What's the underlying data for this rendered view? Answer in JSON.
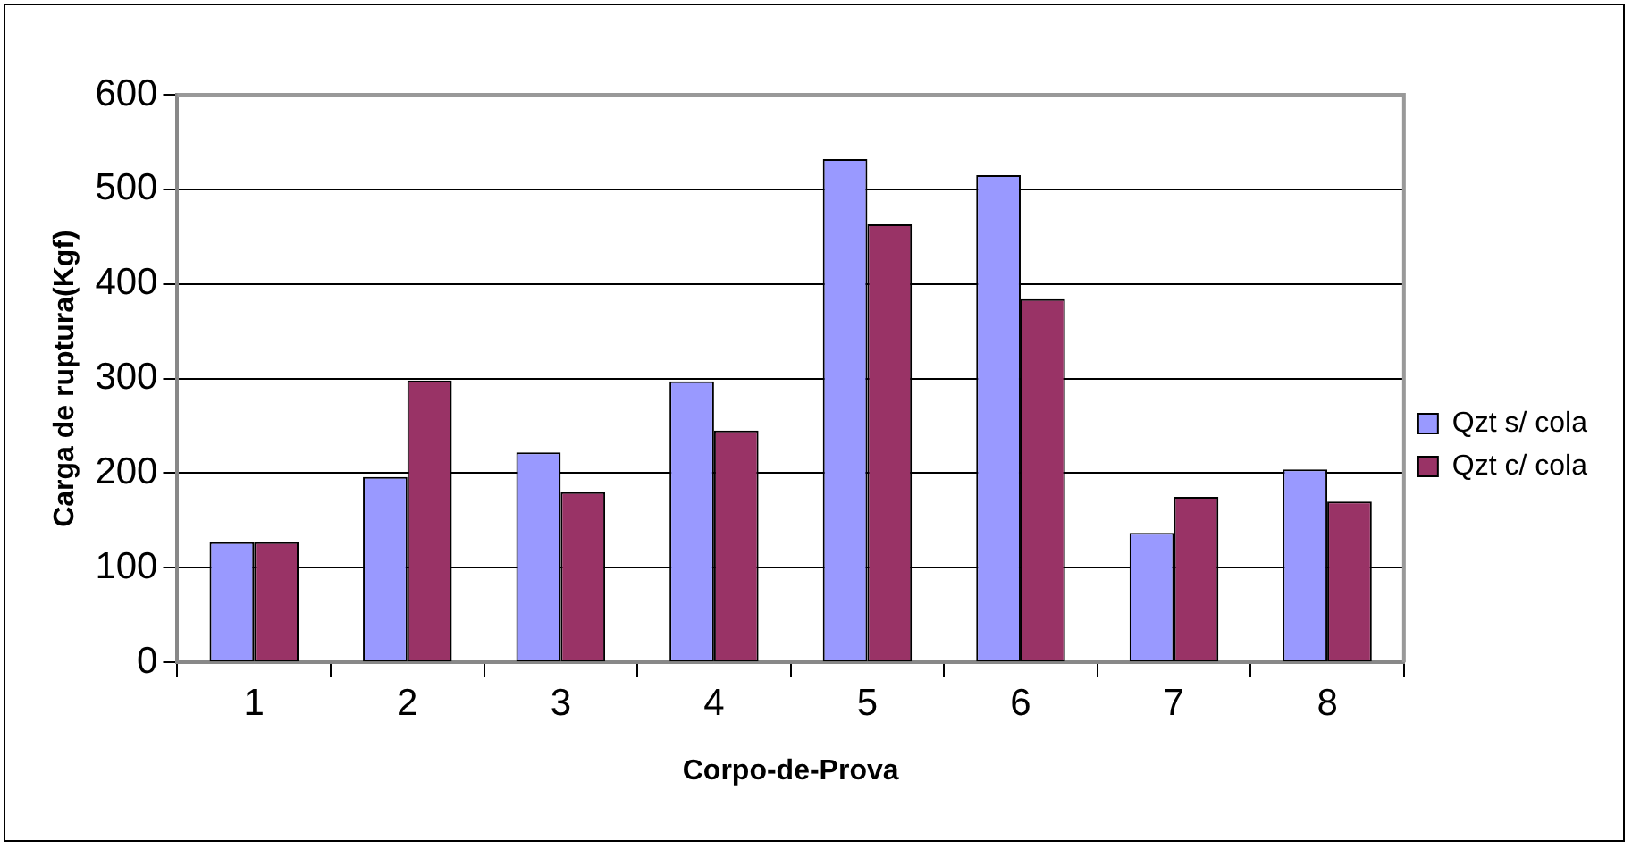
{
  "chart_data": {
    "type": "bar",
    "xlabel": "Corpo-de-Prova",
    "ylabel": "Carga de ruptura(Kgf)",
    "categories": [
      "1",
      "2",
      "3",
      "4",
      "5",
      "6",
      "7",
      "8"
    ],
    "series": [
      {
        "name": "Qzt s/ cola",
        "color": "#9999ff",
        "values": [
          127,
          196,
          222,
          297,
          532,
          515,
          137,
          204
        ]
      },
      {
        "name": "Qzt c/ cola",
        "color": "#993366",
        "values": [
          127,
          298,
          180,
          245,
          463,
          384,
          175,
          170
        ]
      }
    ],
    "ylim": [
      0,
      600
    ],
    "yticks": [
      0,
      100,
      200,
      300,
      400,
      500,
      600
    ],
    "grid": "y",
    "legend": "right"
  }
}
